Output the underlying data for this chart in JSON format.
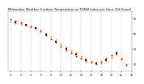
{
  "title": "Milwaukee Weather Outdoor Temperature vs THSW Index per Hour (24 Hours)",
  "title_fontsize": 2.8,
  "background_color": "#ffffff",
  "plot_bg_color": "#ffffff",
  "grid_color": "#bbbbbb",
  "xlim": [
    -0.5,
    24
  ],
  "ylim": [
    10,
    90
  ],
  "yticks": [
    20,
    40,
    60,
    80
  ],
  "ytick_labels": [
    "20",
    "40",
    "60",
    "80"
  ],
  "xticks": [
    0,
    2,
    4,
    6,
    8,
    10,
    12,
    14,
    16,
    18,
    20,
    22,
    24
  ],
  "xtick_labels": [
    "0",
    "2",
    "4",
    "6",
    "8",
    "10",
    "12",
    "14",
    "16",
    "18",
    "20",
    "22",
    "24"
  ],
  "xtick_fontsize": 2.2,
  "ytick_fontsize": 2.2,
  "vgrid_positions": [
    0,
    2,
    4,
    6,
    8,
    10,
    12,
    14,
    16,
    18,
    20,
    22,
    24
  ],
  "temp_hours": [
    0,
    1,
    2,
    3,
    4,
    5,
    6,
    7,
    8,
    9,
    10,
    11,
    12,
    13,
    14,
    15,
    16,
    17,
    18,
    19,
    20,
    21,
    22,
    23
  ],
  "temp_vals": [
    76,
    74,
    73,
    71,
    69,
    67,
    65,
    60,
    56,
    51,
    46,
    42,
    38,
    34,
    30,
    27,
    24,
    22,
    21,
    24,
    28,
    32,
    28,
    20
  ],
  "thsw_hours": [
    0,
    1,
    2,
    3,
    4,
    5,
    6,
    7,
    8,
    9,
    10,
    11,
    12,
    13,
    14,
    15,
    16,
    17,
    18,
    19,
    20,
    21,
    22,
    23
  ],
  "thsw_vals": [
    79,
    77,
    75,
    72,
    70,
    67,
    63,
    58,
    53,
    48,
    43,
    38,
    34,
    30,
    27,
    24,
    22,
    20,
    23,
    27,
    31,
    35,
    26,
    18
  ],
  "black_hours": [
    1,
    3,
    5,
    7,
    9,
    11,
    13,
    15,
    17,
    19,
    21
  ],
  "black_vals": [
    75,
    72,
    67,
    59,
    49,
    40,
    32,
    25,
    21,
    25,
    33
  ],
  "temp_color": "#ff8800",
  "thsw_color": "#dd0000",
  "black_color": "#111111",
  "dot_size": 2.0,
  "black_size": 3.0,
  "ylabel_right": true
}
